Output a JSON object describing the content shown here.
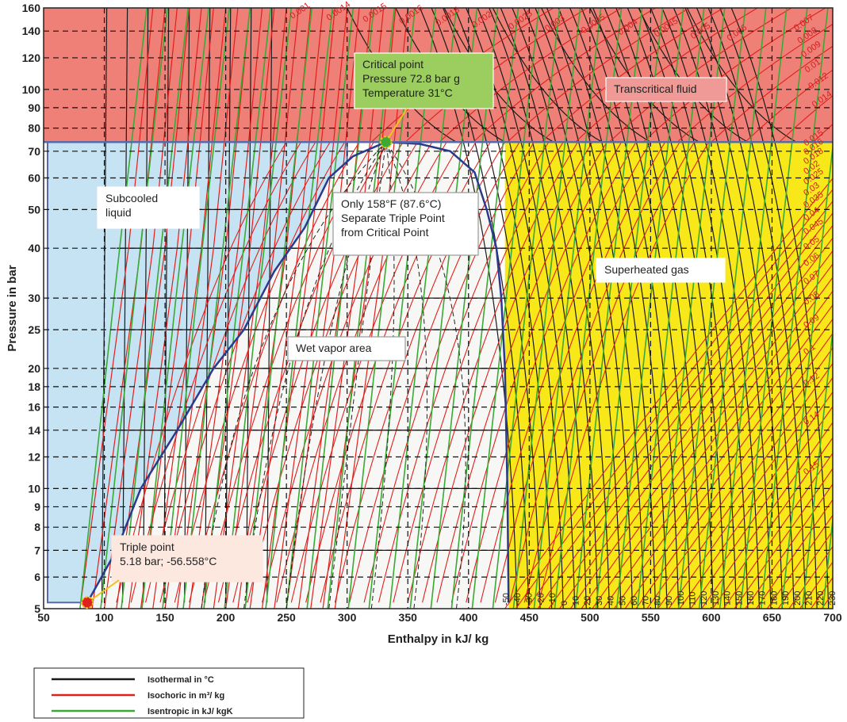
{
  "chart_data": {
    "type": "line",
    "title": "",
    "xlabel": "Enthalpy in  kJ/ kg",
    "ylabel": "Pressure in  bar",
    "xlim": [
      50,
      700
    ],
    "ylim": [
      5,
      160
    ],
    "yscale": "log",
    "grid": true,
    "x_ticks": [
      "50",
      "100",
      "150",
      "200",
      "250",
      "300",
      "350",
      "400",
      "450",
      "500",
      "550",
      "600",
      "650",
      "700"
    ],
    "y_ticks": [
      "5",
      "6",
      "7",
      "8",
      "9",
      "10",
      "12",
      "14",
      "16",
      "18",
      "20",
      "25",
      "30",
      "40",
      "50",
      "60",
      "70",
      "80",
      "90",
      "100",
      "120",
      "140",
      "160"
    ],
    "regions": [
      {
        "name": "Transcritical fluid",
        "color": "#ef8078",
        "x": [
          50,
          700
        ],
        "p": [
          73.8,
          160
        ]
      },
      {
        "name": "Subcooled liquid",
        "color": "#c6e3f3",
        "x": [
          50,
          300
        ],
        "p": [
          5.18,
          73.8
        ]
      },
      {
        "name": "Superheated gas",
        "color": "#f8e81a",
        "x": [
          430,
          700
        ],
        "p": [
          5.18,
          73.8
        ]
      },
      {
        "name": "Wet vapor area",
        "color": "#f7f7f5"
      }
    ],
    "saturation_dome": {
      "liquid_line": [
        [
          86,
          5.18
        ],
        [
          110,
          7
        ],
        [
          130,
          10
        ],
        [
          160,
          14
        ],
        [
          190,
          20
        ],
        [
          215,
          25
        ],
        [
          240,
          35
        ],
        [
          265,
          45
        ],
        [
          285,
          60
        ],
        [
          305,
          68
        ],
        [
          332,
          73.8
        ]
      ],
      "vapor_line": [
        [
          332,
          73.8
        ],
        [
          360,
          73
        ],
        [
          385,
          70
        ],
        [
          405,
          62
        ],
        [
          415,
          50
        ],
        [
          423,
          40
        ],
        [
          427,
          30
        ],
        [
          430,
          20
        ],
        [
          432,
          10
        ],
        [
          433,
          5.18
        ]
      ]
    },
    "points": [
      {
        "name": "Critical point",
        "h": 332,
        "p": 73.8
      },
      {
        "name": "Triple point",
        "h": 86,
        "p": 5.18
      }
    ],
    "annotations": [
      {
        "label": "critical",
        "lines": [
          "Critical point",
          "Pressure 72.8 bar g",
          "Temperature 31°C"
        ]
      },
      {
        "label": "transcritical",
        "lines": [
          "Transcritical fluid"
        ]
      },
      {
        "label": "subcooled",
        "lines": [
          "Subcooled",
          " liquid"
        ]
      },
      {
        "label": "separation",
        "lines": [
          "Only 158°F (87.6°C)",
          "Separate Triple Point",
          "from Critical Point"
        ]
      },
      {
        "label": "superheated",
        "lines": [
          "Superheated gas"
        ]
      },
      {
        "label": "wet",
        "lines": [
          "Wet vapor area"
        ]
      },
      {
        "label": "triple",
        "lines": [
          "Triple point",
          " 5.18 bar; -56.558°C"
        ]
      }
    ],
    "isotherm_labels": [
      "-50",
      "-40",
      "-30",
      "-20",
      "-10",
      "0",
      "10",
      "20",
      "30",
      "40",
      "50",
      "60",
      "70",
      "80",
      "90",
      "100",
      "110",
      "120",
      "130",
      "140",
      "150",
      "160",
      "170",
      "180",
      "190",
      "200",
      "210",
      "220",
      "230"
    ],
    "isochore_labels": [
      "0.001",
      "0.0014",
      "0.0015",
      "0.0016",
      "0.0018",
      "0.002",
      "0.0025",
      "0.003",
      "0.0035",
      "0.004",
      "0.0045",
      "0.005",
      "0.006",
      "0.007",
      "0.008",
      "0.009",
      "0.01",
      "0.012",
      "0.014",
      "0.015",
      "0.016",
      "0.018",
      "0.02",
      "0.025",
      "0.03",
      "0.035",
      "0.04",
      "0.045",
      "0.05",
      "0.06",
      "0.07",
      "0.08",
      "0.09",
      "0.1",
      "0.12",
      "0.14",
      "0.15"
    ],
    "series": [
      {
        "name": "Isothermal  in °C",
        "color": "#1a1a1a"
      },
      {
        "name": "Isochoric in m³/ kg",
        "color": "#e0201c"
      },
      {
        "name": "Isentropic in  kJ/ kgK",
        "color": "#3aaa35"
      }
    ]
  }
}
